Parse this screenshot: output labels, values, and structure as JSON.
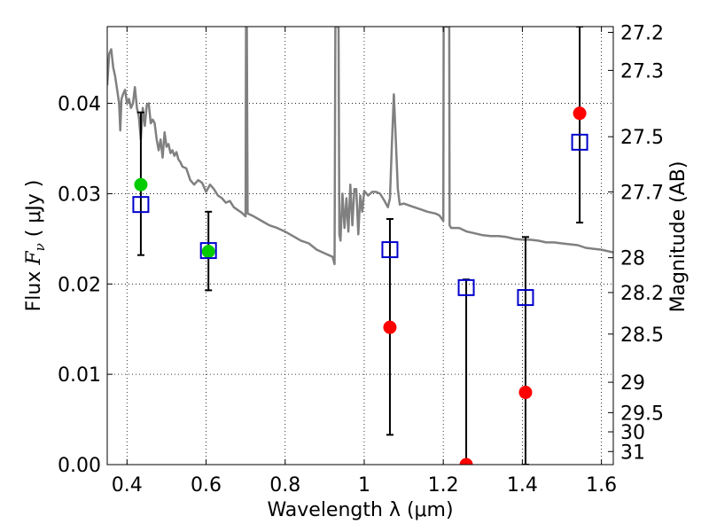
{
  "chart_data": {
    "type": "scatter",
    "xlabel": "Wavelength  λ (μm)",
    "ylabel": "Flux  F_ν  ( μJy )",
    "ylabel_parts": {
      "pre": "Flux  ",
      "sym": "F",
      "sub": "ν",
      "unit": " (  μJy )"
    },
    "y2label": "Magnitude (AB)",
    "xlim": [
      0.35,
      1.63
    ],
    "ylim": [
      0.0,
      0.0485
    ],
    "grid": true,
    "x_ticks": [
      {
        "value": 0.4,
        "label": "0.4"
      },
      {
        "value": 0.6,
        "label": "0.6"
      },
      {
        "value": 0.8,
        "label": "0.8"
      },
      {
        "value": 1.0,
        "label": "1"
      },
      {
        "value": 1.2,
        "label": "1.2"
      },
      {
        "value": 1.4,
        "label": "1.4"
      },
      {
        "value": 1.6,
        "label": "1.6"
      }
    ],
    "y_ticks": [
      {
        "value": 0.0,
        "label": "0.00"
      },
      {
        "value": 0.01,
        "label": "0.01"
      },
      {
        "value": 0.02,
        "label": "0.02"
      },
      {
        "value": 0.03,
        "label": "0.03"
      },
      {
        "value": 0.04,
        "label": "0.04"
      }
    ],
    "mag_ticks": [
      {
        "mag": 27.2,
        "label": "27.2"
      },
      {
        "mag": 27.3,
        "label": "27.3"
      },
      {
        "mag": 27.5,
        "label": "27.5"
      },
      {
        "mag": 27.7,
        "label": "27.7"
      },
      {
        "mag": 28.0,
        "label": "28"
      },
      {
        "mag": 28.2,
        "label": "28.2"
      },
      {
        "mag": 28.5,
        "label": "28.5"
      },
      {
        "mag": 29.0,
        "label": "29"
      },
      {
        "mag": 29.5,
        "label": "29.5"
      },
      {
        "mag": 30.0,
        "label": "30"
      },
      {
        "mag": 31.0,
        "label": "31"
      }
    ],
    "template_spectrum": {
      "color": "#808080",
      "points": [
        [
          0.35,
          0.042
        ],
        [
          0.355,
          0.0455
        ],
        [
          0.36,
          0.046
        ],
        [
          0.365,
          0.044
        ],
        [
          0.37,
          0.043
        ],
        [
          0.375,
          0.0415
        ],
        [
          0.38,
          0.04
        ],
        [
          0.383,
          0.037
        ],
        [
          0.386,
          0.0405
        ],
        [
          0.39,
          0.041
        ],
        [
          0.395,
          0.0415
        ],
        [
          0.4,
          0.04
        ],
        [
          0.405,
          0.0405
        ],
        [
          0.41,
          0.0395
        ],
        [
          0.415,
          0.04
        ],
        [
          0.42,
          0.0418
        ],
        [
          0.425,
          0.0395
        ],
        [
          0.43,
          0.0385
        ],
        [
          0.435,
          0.036
        ],
        [
          0.44,
          0.0395
        ],
        [
          0.445,
          0.0375
        ],
        [
          0.45,
          0.0398
        ],
        [
          0.455,
          0.04
        ],
        [
          0.46,
          0.0378
        ],
        [
          0.465,
          0.0382
        ],
        [
          0.47,
          0.0378
        ],
        [
          0.475,
          0.036
        ],
        [
          0.48,
          0.0348
        ],
        [
          0.485,
          0.036
        ],
        [
          0.49,
          0.034
        ],
        [
          0.495,
          0.0368
        ],
        [
          0.5,
          0.0352
        ],
        [
          0.505,
          0.0355
        ],
        [
          0.51,
          0.0345
        ],
        [
          0.515,
          0.0348
        ],
        [
          0.52,
          0.0342
        ],
        [
          0.525,
          0.0346
        ],
        [
          0.53,
          0.0338
        ],
        [
          0.535,
          0.0335
        ],
        [
          0.54,
          0.033
        ],
        [
          0.55,
          0.0328
        ],
        [
          0.56,
          0.0315
        ],
        [
          0.57,
          0.031
        ],
        [
          0.58,
          0.0315
        ],
        [
          0.59,
          0.0312
        ],
        [
          0.6,
          0.0302
        ],
        [
          0.61,
          0.031
        ],
        [
          0.62,
          0.0305
        ],
        [
          0.63,
          0.0298
        ],
        [
          0.64,
          0.0295
        ],
        [
          0.65,
          0.029
        ],
        [
          0.66,
          0.0292
        ],
        [
          0.67,
          0.0285
        ],
        [
          0.68,
          0.0282
        ],
        [
          0.69,
          0.0279
        ],
        [
          0.7,
          0.0275
        ],
        [
          0.701,
          0.0485
        ],
        [
          0.703,
          0.0485
        ],
        [
          0.705,
          0.0278
        ],
        [
          0.72,
          0.0275
        ],
        [
          0.74,
          0.027
        ],
        [
          0.76,
          0.0265
        ],
        [
          0.78,
          0.0262
        ],
        [
          0.8,
          0.0258
        ],
        [
          0.82,
          0.0253
        ],
        [
          0.84,
          0.0248
        ],
        [
          0.86,
          0.0245
        ],
        [
          0.88,
          0.0238
        ],
        [
          0.9,
          0.0234
        ],
        [
          0.92,
          0.023
        ],
        [
          0.925,
          0.0222
        ],
        [
          0.927,
          0.0485
        ],
        [
          0.935,
          0.0485
        ],
        [
          0.937,
          0.0255
        ],
        [
          0.94,
          0.0248
        ],
        [
          0.945,
          0.03
        ],
        [
          0.95,
          0.0262
        ],
        [
          0.955,
          0.0295
        ],
        [
          0.96,
          0.0258
        ],
        [
          0.965,
          0.031
        ],
        [
          0.97,
          0.0265
        ],
        [
          0.975,
          0.0305
        ],
        [
          0.98,
          0.0305
        ],
        [
          0.985,
          0.0255
        ],
        [
          0.99,
          0.0298
        ],
        [
          0.995,
          0.028
        ],
        [
          1.0,
          0.0303
        ],
        [
          1.01,
          0.0298
        ],
        [
          1.02,
          0.0302
        ],
        [
          1.03,
          0.0302
        ],
        [
          1.04,
          0.03
        ],
        [
          1.05,
          0.0293
        ],
        [
          1.06,
          0.0285
        ],
        [
          1.065,
          0.0295
        ],
        [
          1.07,
          0.0355
        ],
        [
          1.075,
          0.041
        ],
        [
          1.08,
          0.036
        ],
        [
          1.085,
          0.0305
        ],
        [
          1.09,
          0.0288
        ],
        [
          1.1,
          0.0289
        ],
        [
          1.12,
          0.0286
        ],
        [
          1.14,
          0.0283
        ],
        [
          1.16,
          0.028
        ],
        [
          1.18,
          0.0278
        ],
        [
          1.19,
          0.0276
        ],
        [
          1.2,
          0.027
        ],
        [
          1.201,
          0.0485
        ],
        [
          1.21,
          0.0485
        ],
        [
          1.215,
          0.0485
        ],
        [
          1.216,
          0.0265
        ],
        [
          1.22,
          0.0262
        ],
        [
          1.24,
          0.0262
        ],
        [
          1.26,
          0.0258
        ],
        [
          1.28,
          0.0256
        ],
        [
          1.3,
          0.0254
        ],
        [
          1.32,
          0.0253
        ],
        [
          1.34,
          0.0253
        ],
        [
          1.36,
          0.0252
        ],
        [
          1.38,
          0.025
        ],
        [
          1.4,
          0.0249
        ],
        [
          1.42,
          0.0249
        ],
        [
          1.44,
          0.0248
        ],
        [
          1.46,
          0.0246
        ],
        [
          1.48,
          0.0246
        ],
        [
          1.5,
          0.0245
        ],
        [
          1.52,
          0.0244
        ],
        [
          1.54,
          0.0243
        ],
        [
          1.56,
          0.024
        ],
        [
          1.58,
          0.0239
        ],
        [
          1.6,
          0.0238
        ],
        [
          1.63,
          0.0235
        ]
      ]
    },
    "model_points": {
      "marker": "open-square",
      "color": "#0000cc",
      "points": [
        {
          "x": 0.435,
          "y": 0.0288
        },
        {
          "x": 0.606,
          "y": 0.0237
        },
        {
          "x": 1.065,
          "y": 0.0238
        },
        {
          "x": 1.258,
          "y": 0.0196
        },
        {
          "x": 1.408,
          "y": 0.0185
        },
        {
          "x": 1.545,
          "y": 0.0357
        }
      ]
    },
    "detections": {
      "marker": "filled-circle",
      "color": "#00cc00",
      "points": [
        {
          "x": 0.435,
          "y": 0.031,
          "yerr_low": 0.0232,
          "yerr_high": 0.039
        },
        {
          "x": 0.606,
          "y": 0.0236,
          "yerr_low": 0.0193,
          "yerr_high": 0.028
        }
      ]
    },
    "nondetections": {
      "marker": "filled-circle",
      "color": "#ff0000",
      "points": [
        {
          "x": 1.065,
          "y": 0.0152,
          "yerr_low": 0.0033,
          "yerr_high": 0.0272
        },
        {
          "x": 1.258,
          "y": 0.0,
          "yerr_low": 0.0,
          "yerr_high": 0.0205
        },
        {
          "x": 1.408,
          "y": 0.008,
          "yerr_low": 0.0,
          "yerr_high": 0.0252
        },
        {
          "x": 1.545,
          "y": 0.0389,
          "yerr_low": 0.0268,
          "yerr_high": 0.0485
        }
      ]
    }
  }
}
